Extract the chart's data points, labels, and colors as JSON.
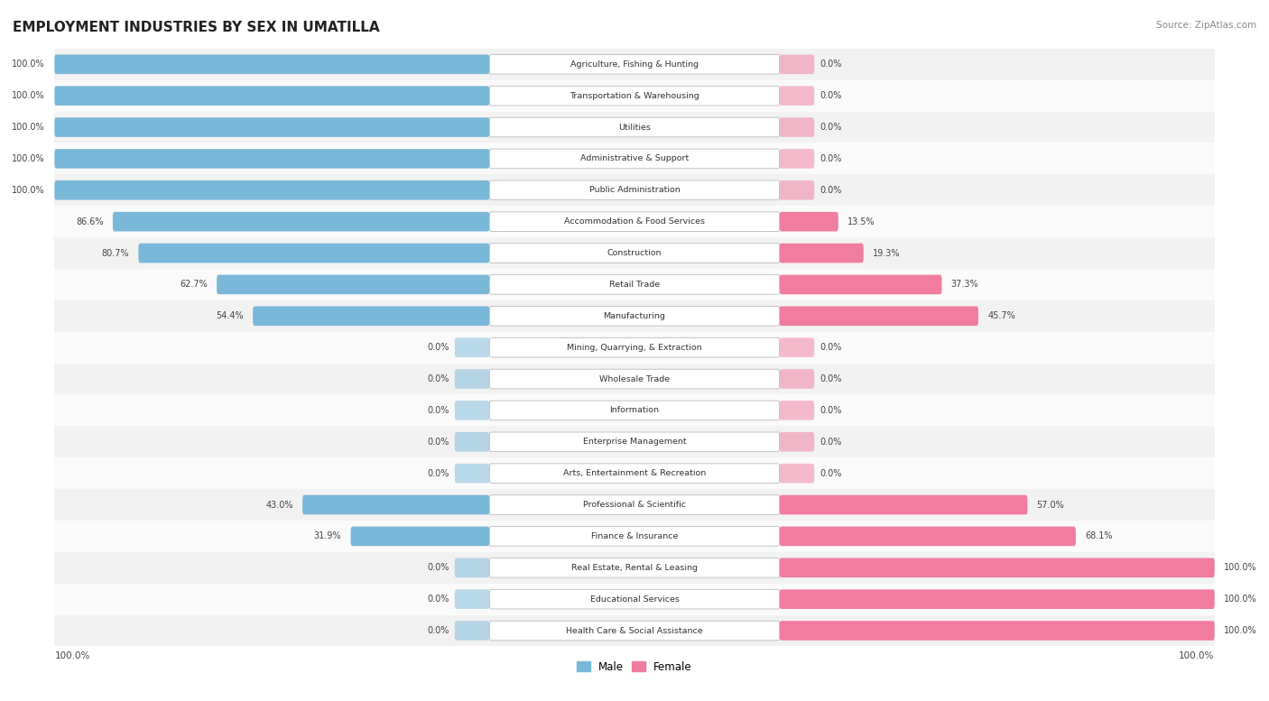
{
  "title": "EMPLOYMENT INDUSTRIES BY SEX IN UMATILLA",
  "source": "Source: ZipAtlas.com",
  "legend_male": "Male",
  "legend_female": "Female",
  "male_color": "#7ab8d9",
  "female_color": "#f07ca0",
  "industries": [
    {
      "name": "Agriculture, Fishing & Hunting",
      "male": 100.0,
      "female": 0.0
    },
    {
      "name": "Transportation & Warehousing",
      "male": 100.0,
      "female": 0.0
    },
    {
      "name": "Utilities",
      "male": 100.0,
      "female": 0.0
    },
    {
      "name": "Administrative & Support",
      "male": 100.0,
      "female": 0.0
    },
    {
      "name": "Public Administration",
      "male": 100.0,
      "female": 0.0
    },
    {
      "name": "Accommodation & Food Services",
      "male": 86.6,
      "female": 13.5
    },
    {
      "name": "Construction",
      "male": 80.7,
      "female": 19.3
    },
    {
      "name": "Retail Trade",
      "male": 62.7,
      "female": 37.3
    },
    {
      "name": "Manufacturing",
      "male": 54.4,
      "female": 45.7
    },
    {
      "name": "Mining, Quarrying, & Extraction",
      "male": 0.0,
      "female": 0.0
    },
    {
      "name": "Wholesale Trade",
      "male": 0.0,
      "female": 0.0
    },
    {
      "name": "Information",
      "male": 0.0,
      "female": 0.0
    },
    {
      "name": "Enterprise Management",
      "male": 0.0,
      "female": 0.0
    },
    {
      "name": "Arts, Entertainment & Recreation",
      "male": 0.0,
      "female": 0.0
    },
    {
      "name": "Professional & Scientific",
      "male": 43.0,
      "female": 57.0
    },
    {
      "name": "Finance & Insurance",
      "male": 31.9,
      "female": 68.1
    },
    {
      "name": "Real Estate, Rental & Leasing",
      "male": 0.0,
      "female": 100.0
    },
    {
      "name": "Educational Services",
      "male": 0.0,
      "female": 100.0
    },
    {
      "name": "Health Care & Social Assistance",
      "male": 0.0,
      "female": 100.0
    }
  ]
}
